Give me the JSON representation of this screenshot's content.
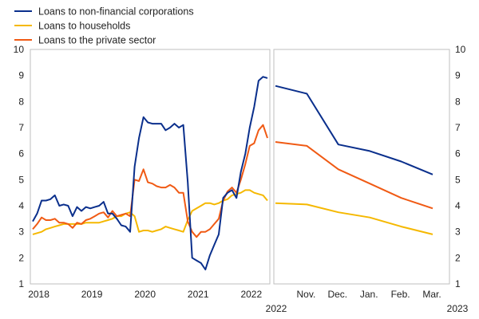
{
  "chart_data": {
    "type": "line",
    "y_range": [
      1,
      10
    ],
    "y_ticks": [
      "1",
      "2",
      "3",
      "4",
      "5",
      "6",
      "7",
      "8",
      "9",
      "10"
    ],
    "grid": false,
    "legend_position": "top-left",
    "colors": {
      "nfc": "#0a2f8c",
      "households": "#f5b800",
      "private": "#f05a14"
    },
    "legend": [
      {
        "key": "nfc",
        "label": "Loans to non-financial corporations"
      },
      {
        "key": "households",
        "label": "Loans to households"
      },
      {
        "key": "private",
        "label": "Loans to the private sector"
      }
    ],
    "left_panel": {
      "x_ticks": [
        "2018",
        "2019",
        "2020",
        "2021",
        "2022"
      ],
      "series": {
        "nfc": [
          [
            0,
            3.4
          ],
          [
            1,
            3.7
          ],
          [
            2,
            4.2
          ],
          [
            3,
            4.2
          ],
          [
            4,
            4.25
          ],
          [
            5,
            4.4
          ],
          [
            6,
            4.0
          ],
          [
            7,
            4.05
          ],
          [
            8,
            4.0
          ],
          [
            9,
            3.6
          ],
          [
            10,
            3.95
          ],
          [
            11,
            3.8
          ],
          [
            12,
            3.95
          ],
          [
            13,
            3.9
          ],
          [
            14,
            3.95
          ],
          [
            15,
            4.0
          ],
          [
            16,
            4.15
          ],
          [
            17,
            3.7
          ],
          [
            18,
            3.7
          ],
          [
            19,
            3.5
          ],
          [
            20,
            3.25
          ],
          [
            21,
            3.2
          ],
          [
            22,
            3.0
          ],
          [
            23,
            5.5
          ],
          [
            24,
            6.6
          ],
          [
            25,
            7.4
          ],
          [
            26,
            7.2
          ],
          [
            27,
            7.15
          ],
          [
            28,
            7.15
          ],
          [
            29,
            7.15
          ],
          [
            30,
            6.9
          ],
          [
            31,
            7.0
          ],
          [
            32,
            7.15
          ],
          [
            33,
            7.0
          ],
          [
            34,
            7.1
          ],
          [
            35,
            4.9
          ],
          [
            36,
            2.0
          ],
          [
            37,
            1.9
          ],
          [
            38,
            1.8
          ],
          [
            39,
            1.55
          ],
          [
            40,
            2.1
          ],
          [
            41,
            2.5
          ],
          [
            42,
            2.9
          ],
          [
            43,
            4.3
          ],
          [
            44,
            4.5
          ],
          [
            45,
            4.6
          ],
          [
            46,
            4.3
          ],
          [
            47,
            5.3
          ],
          [
            48,
            6.0
          ],
          [
            49,
            7.0
          ],
          [
            50,
            7.8
          ],
          [
            51,
            8.8
          ],
          [
            52,
            8.95
          ],
          [
            53,
            8.9
          ]
        ],
        "households": [
          [
            0,
            2.9
          ],
          [
            1,
            2.95
          ],
          [
            2,
            3.0
          ],
          [
            3,
            3.1
          ],
          [
            4,
            3.15
          ],
          [
            5,
            3.2
          ],
          [
            6,
            3.25
          ],
          [
            7,
            3.3
          ],
          [
            8,
            3.3
          ],
          [
            9,
            3.3
          ],
          [
            10,
            3.3
          ],
          [
            11,
            3.3
          ],
          [
            12,
            3.35
          ],
          [
            13,
            3.35
          ],
          [
            14,
            3.35
          ],
          [
            15,
            3.35
          ],
          [
            16,
            3.4
          ],
          [
            17,
            3.45
          ],
          [
            18,
            3.5
          ],
          [
            19,
            3.6
          ],
          [
            20,
            3.6
          ],
          [
            21,
            3.7
          ],
          [
            22,
            3.75
          ],
          [
            23,
            3.6
          ],
          [
            24,
            3.0
          ],
          [
            25,
            3.05
          ],
          [
            26,
            3.05
          ],
          [
            27,
            3.0
          ],
          [
            28,
            3.05
          ],
          [
            29,
            3.1
          ],
          [
            30,
            3.2
          ],
          [
            31,
            3.15
          ],
          [
            32,
            3.1
          ],
          [
            33,
            3.05
          ],
          [
            34,
            3.0
          ],
          [
            35,
            3.45
          ],
          [
            36,
            3.8
          ],
          [
            37,
            3.9
          ],
          [
            38,
            4.0
          ],
          [
            39,
            4.1
          ],
          [
            40,
            4.1
          ],
          [
            41,
            4.05
          ],
          [
            42,
            4.1
          ],
          [
            43,
            4.2
          ],
          [
            44,
            4.25
          ],
          [
            45,
            4.4
          ],
          [
            46,
            4.45
          ],
          [
            47,
            4.5
          ],
          [
            48,
            4.6
          ],
          [
            49,
            4.6
          ],
          [
            50,
            4.5
          ],
          [
            51,
            4.45
          ],
          [
            52,
            4.4
          ],
          [
            53,
            4.2
          ]
        ],
        "private": [
          [
            0,
            3.1
          ],
          [
            1,
            3.3
          ],
          [
            2,
            3.55
          ],
          [
            3,
            3.45
          ],
          [
            4,
            3.45
          ],
          [
            5,
            3.5
          ],
          [
            6,
            3.35
          ],
          [
            7,
            3.35
          ],
          [
            8,
            3.3
          ],
          [
            9,
            3.15
          ],
          [
            10,
            3.35
          ],
          [
            11,
            3.3
          ],
          [
            12,
            3.45
          ],
          [
            13,
            3.5
          ],
          [
            14,
            3.6
          ],
          [
            15,
            3.7
          ],
          [
            16,
            3.75
          ],
          [
            17,
            3.55
          ],
          [
            18,
            3.8
          ],
          [
            19,
            3.6
          ],
          [
            20,
            3.65
          ],
          [
            21,
            3.7
          ],
          [
            22,
            3.6
          ],
          [
            23,
            5.0
          ],
          [
            24,
            4.95
          ],
          [
            25,
            5.4
          ],
          [
            26,
            4.9
          ],
          [
            27,
            4.85
          ],
          [
            28,
            4.75
          ],
          [
            29,
            4.7
          ],
          [
            30,
            4.7
          ],
          [
            31,
            4.8
          ],
          [
            32,
            4.7
          ],
          [
            33,
            4.5
          ],
          [
            34,
            4.5
          ],
          [
            35,
            3.4
          ],
          [
            36,
            3.0
          ],
          [
            37,
            2.8
          ],
          [
            38,
            3.0
          ],
          [
            39,
            3.0
          ],
          [
            40,
            3.1
          ],
          [
            41,
            3.3
          ],
          [
            42,
            3.5
          ],
          [
            43,
            4.2
          ],
          [
            44,
            4.55
          ],
          [
            45,
            4.7
          ],
          [
            46,
            4.5
          ],
          [
            47,
            5.0
          ],
          [
            48,
            5.6
          ],
          [
            49,
            6.3
          ],
          [
            50,
            6.4
          ],
          [
            51,
            6.9
          ],
          [
            52,
            7.1
          ],
          [
            53,
            6.6
          ]
        ]
      }
    },
    "right_panel": {
      "x_ticks": [
        "Nov.",
        "Dec.",
        "Jan.",
        "Feb.",
        "Mar."
      ],
      "x_sublabels": [
        "2022",
        "2023"
      ],
      "series": {
        "nfc": [
          [
            0,
            8.6
          ],
          [
            1,
            8.3
          ],
          [
            2,
            6.35
          ],
          [
            3,
            6.1
          ],
          [
            4,
            5.7
          ],
          [
            5,
            5.2
          ]
        ],
        "households": [
          [
            0,
            4.1
          ],
          [
            1,
            4.05
          ],
          [
            2,
            3.75
          ],
          [
            3,
            3.55
          ],
          [
            4,
            3.2
          ],
          [
            5,
            2.9
          ]
        ],
        "private": [
          [
            0,
            6.45
          ],
          [
            1,
            6.3
          ],
          [
            2,
            5.4
          ],
          [
            3,
            4.85
          ],
          [
            4,
            4.3
          ],
          [
            5,
            3.9
          ]
        ]
      }
    }
  }
}
